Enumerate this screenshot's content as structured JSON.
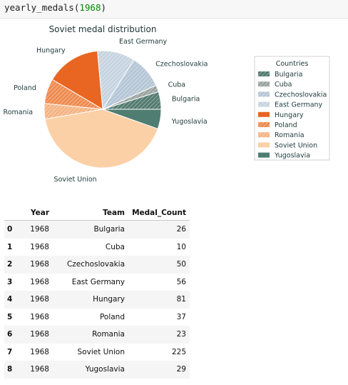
{
  "cell": {
    "function_name": "yearly_medals",
    "argument": "1968"
  },
  "chart_data": {
    "type": "pie",
    "title": "Soviet medal distribution",
    "categories": [
      "Bulgaria",
      "Cuba",
      "Czechoslovakia",
      "East Germany",
      "Hungary",
      "Poland",
      "Romania",
      "Soviet Union",
      "Yugoslavia"
    ],
    "values": [
      26,
      10,
      50,
      56,
      81,
      37,
      23,
      225,
      29
    ],
    "colors": [
      "#537a6f",
      "#9aa3a1",
      "#b5c6d6",
      "#c6d4e0",
      "#e96622",
      "#ee8a4e",
      "#f5b383",
      "#fcd0a6",
      "#4f7d71"
    ],
    "hatched": [
      true,
      true,
      true,
      true,
      false,
      true,
      true,
      false,
      false
    ],
    "legend": {
      "title": "Countries",
      "placement": "right"
    },
    "start_angle_deg": 0,
    "direction": "counterclockwise"
  },
  "table": {
    "columns": [
      "",
      "Year",
      "Team",
      "Medal_Count"
    ],
    "rows": [
      {
        "index": "0",
        "year": "1968",
        "team": "Bulgaria",
        "count": "26"
      },
      {
        "index": "1",
        "year": "1968",
        "team": "Cuba",
        "count": "10"
      },
      {
        "index": "2",
        "year": "1968",
        "team": "Czechoslovakia",
        "count": "50"
      },
      {
        "index": "3",
        "year": "1968",
        "team": "East Germany",
        "count": "56"
      },
      {
        "index": "4",
        "year": "1968",
        "team": "Hungary",
        "count": "81"
      },
      {
        "index": "5",
        "year": "1968",
        "team": "Poland",
        "count": "37"
      },
      {
        "index": "6",
        "year": "1968",
        "team": "Romania",
        "count": "23"
      },
      {
        "index": "7",
        "year": "1968",
        "team": "Soviet Union",
        "count": "225"
      },
      {
        "index": "8",
        "year": "1968",
        "team": "Yugoslavia",
        "count": "29"
      }
    ]
  }
}
